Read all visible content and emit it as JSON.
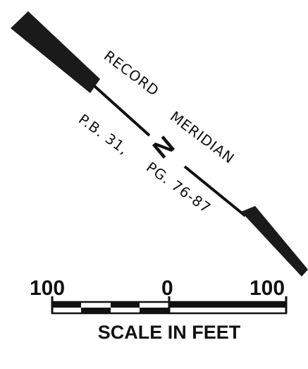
{
  "north_arrow": {
    "label_top": "RECORD",
    "label_right": "MERIDIAN",
    "north_letter": "N",
    "ref_left": "P.B. 31,",
    "ref_right": "PG. 76-87"
  },
  "scale_bar": {
    "tick_left": "100",
    "tick_center": "0",
    "tick_right": "100",
    "caption": "SCALE IN FEET"
  }
}
